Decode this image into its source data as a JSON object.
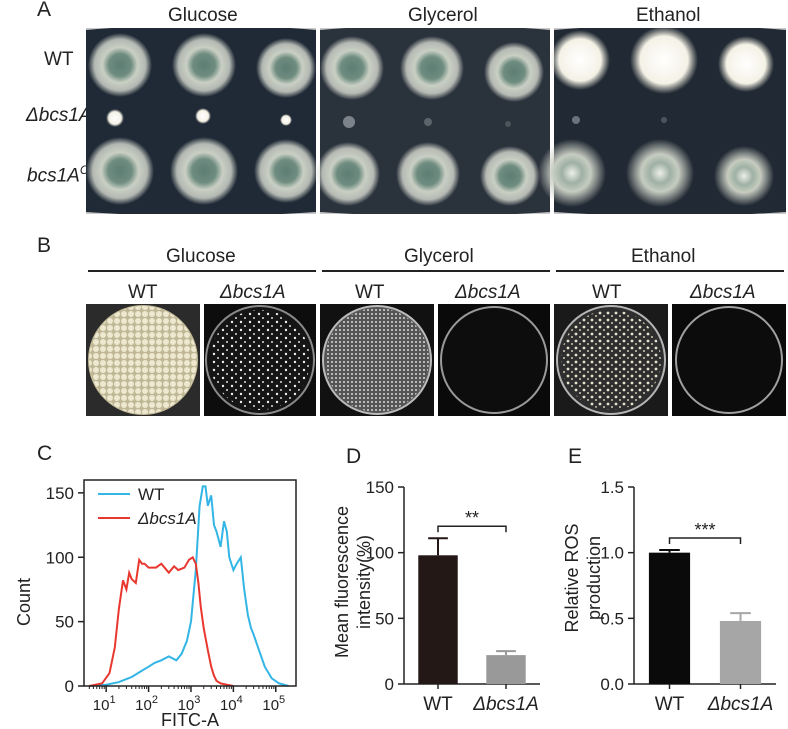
{
  "panel_a": {
    "letter": "A",
    "conditions": [
      "Glucose",
      "Glycerol",
      "Ethanol"
    ],
    "rows": [
      {
        "prefix": "",
        "name": "WT",
        "sup": ""
      },
      {
        "prefix": "Δ",
        "name": "bcs1A",
        "sup": ""
      },
      {
        "prefix": "",
        "name": "bcs1A",
        "sup": "C"
      }
    ]
  },
  "panel_b": {
    "letter": "B",
    "conditions": [
      "Glucose",
      "Glycerol",
      "Ethanol"
    ],
    "strain_labels": [
      "WT",
      "Δbcs1A",
      "WT",
      "Δbcs1A",
      "WT",
      "Δbcs1A"
    ]
  },
  "panel_c": {
    "letter": "C",
    "chart_data": {
      "type": "line",
      "xlabel": "FITC-A",
      "ylabel": "Count",
      "x_scale": "log",
      "xlim": [
        3,
        300000
      ],
      "ylim": [
        0,
        160
      ],
      "y_ticks": [
        "0",
        "50",
        "100",
        "150"
      ],
      "x_ticks": [
        {
          "base": "10",
          "exp": "1",
          "value": 10
        },
        {
          "base": "10",
          "exp": "2",
          "value": 100
        },
        {
          "base": "10",
          "exp": "3",
          "value": 1000
        },
        {
          "base": "10",
          "exp": "4",
          "value": 10000
        },
        {
          "base": "10",
          "exp": "5",
          "value": 100000
        }
      ],
      "legend_position": "top-left",
      "series": [
        {
          "name": "WT",
          "color": "#33b5e5",
          "x": [
            4,
            10,
            20,
            40,
            70,
            100,
            140,
            200,
            300,
            450,
            600,
            800,
            1000,
            1300,
            1600,
            1900,
            2200,
            2500,
            3000,
            3500,
            4000,
            5000,
            6000,
            7000,
            8000,
            10000,
            12000,
            15000,
            18000,
            22000,
            26000,
            30000,
            40000,
            55000,
            80000,
            120000,
            200000
          ],
          "y": [
            0,
            1,
            3,
            7,
            12,
            15,
            18,
            20,
            23,
            20,
            25,
            35,
            50,
            90,
            140,
            155,
            155,
            140,
            148,
            125,
            120,
            108,
            128,
            120,
            100,
            90,
            95,
            100,
            75,
            55,
            45,
            40,
            28,
            15,
            6,
            2,
            0
          ]
        },
        {
          "name": "Δbcs1A",
          "color": "#e8372f",
          "x": [
            4,
            8,
            12,
            16,
            20,
            25,
            30,
            35,
            40,
            50,
            60,
            70,
            80,
            100,
            150,
            200,
            300,
            400,
            500,
            700,
            900,
            1100,
            1300,
            1500,
            1700,
            2000,
            2500,
            3000,
            3500,
            4000,
            5000,
            7000,
            10000
          ],
          "y": [
            0,
            2,
            10,
            30,
            60,
            82,
            75,
            88,
            83,
            80,
            98,
            95,
            95,
            92,
            92,
            95,
            88,
            93,
            90,
            92,
            98,
            100,
            95,
            80,
            62,
            45,
            28,
            15,
            8,
            4,
            2,
            1,
            0
          ]
        }
      ]
    }
  },
  "panel_d": {
    "letter": "D",
    "chart_data": {
      "type": "bar",
      "categories": [
        "WT",
        "Δbcs1A"
      ],
      "values": [
        98,
        22
      ],
      "errors": [
        13,
        3
      ],
      "colors": [
        "#231816",
        "#999999"
      ],
      "ylabel_lines": [
        "Mean fluorescence",
        "intensity(%)"
      ],
      "ylim": [
        0,
        150
      ],
      "y_ticks": [
        "0",
        "50",
        "100",
        "150"
      ],
      "significance": "**"
    }
  },
  "panel_e": {
    "letter": "E",
    "chart_data": {
      "type": "bar",
      "categories": [
        "WT",
        "Δbcs1A"
      ],
      "values": [
        1.0,
        0.48
      ],
      "errors": [
        0.02,
        0.06
      ],
      "colors": [
        "#0a0a0a",
        "#a6a6a6"
      ],
      "ylabel_lines": [
        "Relative ROS",
        "production"
      ],
      "ylim": [
        0,
        1.5
      ],
      "y_ticks": [
        "0.0",
        "0.5",
        "1.0",
        "1.5"
      ],
      "significance": "***"
    }
  }
}
